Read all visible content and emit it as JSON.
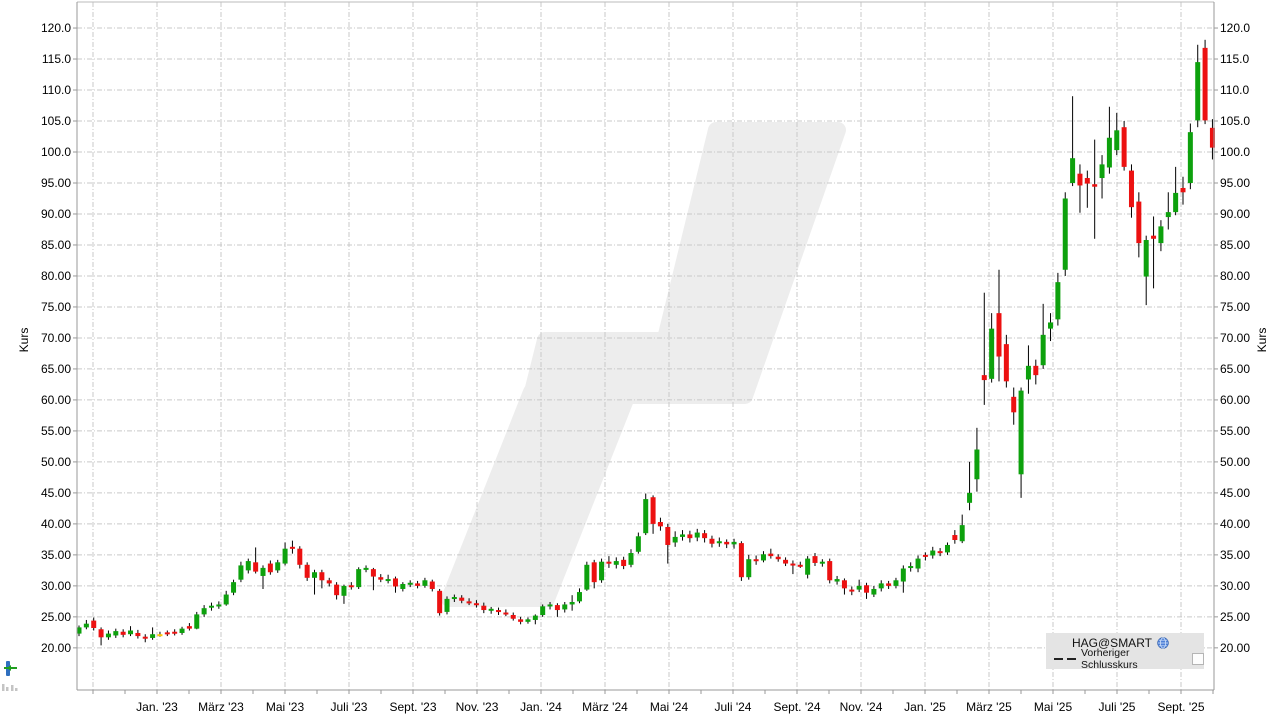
{
  "chart": {
    "y_axis_title_left": "Kurs",
    "y_axis_title_right": "Kurs",
    "legend": {
      "series_label": "HAG@SMART",
      "prev_close_label": "Vorheriger Schlusskurs"
    },
    "colors": {
      "up": "#0da10d",
      "down": "#ec1111",
      "doji": "#ffc800",
      "wick": "#000000",
      "grid": "#c9c9c9",
      "axis": "#999999",
      "top_border": "#bbbbbb",
      "watermark": "#ededed",
      "legend_bg": "#e4e4e4",
      "label": "#000000"
    }
  },
  "chart_data": {
    "type": "candlestick",
    "series_name": "HAG@SMART",
    "interval": "weekly",
    "x_start": "2022-10-17",
    "ylabel": "Kurs",
    "ylim": [
      13.2,
      124.2
    ],
    "grid": true,
    "legend_position": "bottom-right",
    "y_ticks": [
      120,
      115,
      110,
      105,
      100,
      95,
      90,
      85,
      80,
      75,
      70,
      65,
      60,
      55,
      50,
      45,
      40,
      35,
      30,
      25,
      20
    ],
    "y_tick_labels": [
      "120.0",
      "115.0",
      "110.0",
      "105.0",
      "100.0",
      "95.00",
      "90.00",
      "85.00",
      "80.00",
      "75.00",
      "70.00",
      "65.00",
      "60.00",
      "55.00",
      "50.00",
      "45.00",
      "40.00",
      "35.00",
      "30.00",
      "25.00",
      "20.00"
    ],
    "x_tick_labels": [
      "Jan. '23",
      "März '23",
      "Mai '23",
      "Juli '23",
      "Sept. '23",
      "Nov. '23",
      "Jan. '24",
      "März '24",
      "Mai '24",
      "Juli '24",
      "Sept. '24",
      "Nov. '24",
      "Jan. '25",
      "März '25",
      "Mai '25",
      "Juli '25",
      "Sept. '25"
    ],
    "ohlc_note": "weekly candles [open, high, low, close] in EUR, starting week of 2022-10-17",
    "ohlc": [
      [
        22.3,
        23.6,
        21.9,
        23.3
      ],
      [
        23.3,
        24.5,
        23.0,
        23.9
      ],
      [
        24.4,
        24.9,
        22.8,
        23.2
      ],
      [
        23.0,
        23.3,
        20.4,
        21.7
      ],
      [
        21.7,
        22.8,
        21.3,
        22.3
      ],
      [
        22.0,
        23.1,
        21.6,
        22.7
      ],
      [
        22.6,
        23.0,
        21.7,
        22.1
      ],
      [
        22.2,
        23.5,
        21.9,
        22.8
      ],
      [
        22.4,
        22.9,
        21.5,
        21.9
      ],
      [
        21.8,
        22.2,
        20.9,
        21.6
      ],
      [
        21.6,
        23.3,
        21.3,
        22.2
      ],
      [
        22.2,
        22.6,
        21.8,
        22.2
      ],
      [
        22.5,
        22.8,
        21.9,
        22.3
      ],
      [
        22.6,
        23.0,
        22.0,
        22.4
      ],
      [
        22.4,
        23.4,
        22.1,
        23.1
      ],
      [
        23.5,
        24.0,
        22.8,
        23.1
      ],
      [
        23.1,
        25.8,
        23.0,
        25.4
      ],
      [
        25.4,
        26.9,
        25.0,
        26.4
      ],
      [
        26.5,
        27.3,
        26.0,
        26.8
      ],
      [
        26.8,
        27.5,
        26.3,
        27.0
      ],
      [
        27.0,
        29.2,
        26.8,
        28.6
      ],
      [
        28.9,
        31.0,
        28.5,
        30.6
      ],
      [
        31.0,
        33.9,
        30.6,
        33.3
      ],
      [
        32.5,
        34.4,
        32.0,
        34.0
      ],
      [
        33.8,
        36.2,
        32.0,
        32.3
      ],
      [
        31.6,
        33.3,
        29.5,
        32.9
      ],
      [
        33.6,
        34.1,
        31.8,
        32.2
      ],
      [
        32.5,
        34.2,
        32.1,
        33.8
      ],
      [
        33.6,
        37.0,
        33.3,
        36.0
      ],
      [
        36.3,
        37.3,
        35.2,
        36.0
      ],
      [
        36.0,
        36.4,
        32.8,
        33.4
      ],
      [
        33.4,
        33.8,
        30.8,
        31.3
      ],
      [
        31.3,
        32.6,
        28.6,
        32.2
      ],
      [
        32.2,
        32.6,
        29.6,
        30.9
      ],
      [
        30.9,
        31.3,
        29.9,
        30.4
      ],
      [
        30.2,
        30.6,
        27.8,
        28.5
      ],
      [
        28.4,
        30.2,
        27.1,
        30.0
      ],
      [
        30.1,
        30.6,
        29.4,
        29.8
      ],
      [
        29.8,
        33.0,
        29.5,
        32.7
      ],
      [
        32.8,
        33.3,
        32.2,
        32.9
      ],
      [
        32.7,
        32.9,
        29.3,
        31.5
      ],
      [
        31.4,
        31.9,
        30.6,
        31.0
      ],
      [
        30.8,
        31.8,
        30.4,
        31.1
      ],
      [
        31.2,
        31.5,
        28.9,
        29.9
      ],
      [
        29.5,
        30.6,
        29.1,
        30.3
      ],
      [
        30.4,
        30.9,
        29.8,
        30.5
      ],
      [
        30.4,
        30.8,
        29.6,
        30.0
      ],
      [
        30.0,
        31.3,
        29.7,
        30.9
      ],
      [
        30.7,
        31.0,
        29.1,
        29.5
      ],
      [
        29.2,
        29.5,
        25.2,
        25.6
      ],
      [
        25.8,
        28.3,
        25.4,
        27.9
      ],
      [
        27.9,
        28.6,
        27.4,
        28.2
      ],
      [
        28.1,
        28.5,
        27.2,
        27.6
      ],
      [
        27.5,
        28.0,
        26.9,
        27.2
      ],
      [
        27.2,
        27.7,
        26.5,
        26.9
      ],
      [
        26.8,
        27.3,
        25.6,
        26.1
      ],
      [
        26.0,
        26.6,
        25.5,
        26.3
      ],
      [
        26.1,
        26.5,
        25.3,
        25.8
      ],
      [
        25.7,
        26.2,
        25.1,
        25.4
      ],
      [
        25.3,
        25.7,
        24.4,
        24.7
      ],
      [
        24.6,
        25.0,
        23.8,
        24.2
      ],
      [
        24.2,
        24.9,
        23.9,
        24.6
      ],
      [
        24.5,
        25.4,
        23.8,
        25.2
      ],
      [
        25.3,
        27.0,
        25.0,
        26.7
      ],
      [
        26.7,
        27.4,
        26.2,
        27.0
      ],
      [
        26.9,
        27.2,
        25.0,
        26.1
      ],
      [
        26.2,
        27.4,
        25.7,
        27.0
      ],
      [
        27.0,
        28.5,
        26.0,
        27.4
      ],
      [
        27.5,
        29.6,
        27.2,
        29.0
      ],
      [
        29.4,
        33.9,
        29.2,
        33.4
      ],
      [
        33.8,
        34.2,
        29.6,
        30.6
      ],
      [
        30.9,
        34.4,
        30.5,
        33.9
      ],
      [
        33.9,
        34.8,
        32.9,
        33.6
      ],
      [
        33.4,
        34.6,
        32.8,
        34.0
      ],
      [
        34.2,
        34.7,
        32.7,
        33.2
      ],
      [
        33.4,
        35.9,
        33.0,
        35.3
      ],
      [
        35.5,
        38.6,
        35.2,
        38.0
      ],
      [
        38.5,
        44.9,
        38.2,
        44.0
      ],
      [
        44.3,
        44.6,
        38.4,
        40.0
      ],
      [
        40.3,
        41.0,
        38.9,
        39.6
      ],
      [
        39.5,
        40.0,
        33.6,
        36.6
      ],
      [
        37.0,
        38.8,
        36.3,
        37.9
      ],
      [
        37.9,
        39.0,
        37.3,
        38.3
      ],
      [
        38.3,
        38.9,
        37.0,
        37.7
      ],
      [
        37.8,
        39.2,
        37.2,
        38.6
      ],
      [
        38.5,
        39.0,
        37.0,
        37.7
      ],
      [
        37.6,
        38.1,
        36.2,
        36.8
      ],
      [
        36.9,
        37.8,
        36.3,
        37.2
      ],
      [
        37.1,
        37.5,
        36.1,
        36.7
      ],
      [
        36.7,
        37.6,
        36.0,
        37.1
      ],
      [
        36.9,
        37.2,
        30.8,
        31.4
      ],
      [
        31.4,
        35.0,
        31.0,
        34.3
      ],
      [
        34.3,
        34.9,
        33.4,
        34.0
      ],
      [
        34.1,
        35.6,
        33.8,
        35.1
      ],
      [
        35.2,
        36.0,
        34.4,
        34.8
      ],
      [
        34.7,
        35.1,
        33.9,
        34.3
      ],
      [
        34.2,
        34.6,
        33.2,
        33.6
      ],
      [
        33.6,
        34.1,
        31.9,
        33.4
      ],
      [
        33.4,
        33.9,
        32.9,
        33.3
      ],
      [
        31.8,
        34.8,
        31.2,
        34.4
      ],
      [
        34.8,
        35.3,
        33.2,
        33.7
      ],
      [
        33.7,
        34.3,
        33.1,
        33.9
      ],
      [
        34.0,
        34.4,
        30.4,
        30.9
      ],
      [
        30.7,
        31.6,
        30.2,
        31.1
      ],
      [
        30.9,
        31.2,
        28.6,
        29.6
      ],
      [
        29.4,
        29.9,
        28.5,
        29.2
      ],
      [
        29.4,
        31.0,
        29.0,
        30.0
      ],
      [
        30.1,
        30.5,
        27.9,
        28.9
      ],
      [
        28.6,
        30.0,
        28.2,
        29.5
      ],
      [
        29.6,
        30.9,
        29.1,
        30.4
      ],
      [
        30.4,
        30.8,
        29.5,
        30.0
      ],
      [
        30.0,
        31.3,
        29.6,
        30.9
      ],
      [
        30.7,
        33.3,
        28.9,
        32.8
      ],
      [
        32.9,
        33.8,
        32.3,
        33.2
      ],
      [
        32.8,
        34.9,
        32.2,
        34.4
      ],
      [
        35.0,
        35.4,
        34.1,
        34.7
      ],
      [
        34.9,
        36.3,
        34.4,
        35.7
      ],
      [
        35.6,
        36.1,
        34.8,
        35.3
      ],
      [
        35.4,
        37.0,
        35.0,
        36.6
      ],
      [
        38.2,
        39.0,
        36.8,
        37.4
      ],
      [
        37.2,
        41.5,
        36.9,
        39.8
      ],
      [
        43.4,
        50.0,
        42.2,
        45.0
      ],
      [
        47.2,
        55.5,
        45.2,
        52.0
      ],
      [
        64.0,
        77.3,
        59.2,
        63.2
      ],
      [
        63.4,
        74.0,
        62.8,
        71.5
      ],
      [
        74.0,
        81.0,
        63.0,
        67.0
      ],
      [
        69.0,
        70.5,
        62.0,
        63.0
      ],
      [
        60.5,
        62.0,
        56.0,
        58.0
      ],
      [
        48.0,
        62.0,
        44.2,
        61.5
      ],
      [
        63.3,
        68.8,
        61.0,
        65.5
      ],
      [
        65.5,
        66.5,
        62.5,
        64.0
      ],
      [
        65.6,
        75.5,
        65.0,
        70.5
      ],
      [
        71.5,
        74.0,
        69.5,
        72.5
      ],
      [
        73.0,
        80.5,
        72.0,
        79.0
      ],
      [
        81.0,
        93.5,
        80.0,
        92.5
      ],
      [
        95.0,
        109.0,
        94.5,
        99.0
      ],
      [
        96.5,
        98.0,
        90.2,
        94.6
      ],
      [
        95.8,
        97.0,
        91.0,
        94.9
      ],
      [
        94.8,
        102.0,
        86.0,
        94.4
      ],
      [
        95.8,
        99.5,
        92.5,
        98.0
      ],
      [
        97.5,
        107.3,
        96.5,
        102.3
      ],
      [
        100.3,
        106.3,
        99.5,
        103.5
      ],
      [
        104.0,
        105.0,
        97.0,
        97.6
      ],
      [
        97.0,
        98.0,
        89.4,
        91.1
      ],
      [
        92.0,
        93.5,
        83.0,
        85.3
      ],
      [
        79.9,
        86.5,
        75.3,
        85.8
      ],
      [
        86.5,
        89.6,
        78.0,
        86.0
      ],
      [
        85.3,
        89.0,
        84.0,
        88.0
      ],
      [
        89.5,
        93.5,
        87.5,
        90.3
      ],
      [
        90.3,
        97.6,
        89.8,
        93.4
      ],
      [
        94.2,
        96.0,
        91.5,
        93.5
      ],
      [
        95.0,
        104.6,
        94.0,
        103.2
      ],
      [
        105.1,
        117.3,
        104.0,
        114.5
      ],
      [
        116.8,
        118.1,
        104.5,
        105.1
      ],
      [
        103.9,
        105.3,
        98.8,
        100.7
      ]
    ]
  }
}
